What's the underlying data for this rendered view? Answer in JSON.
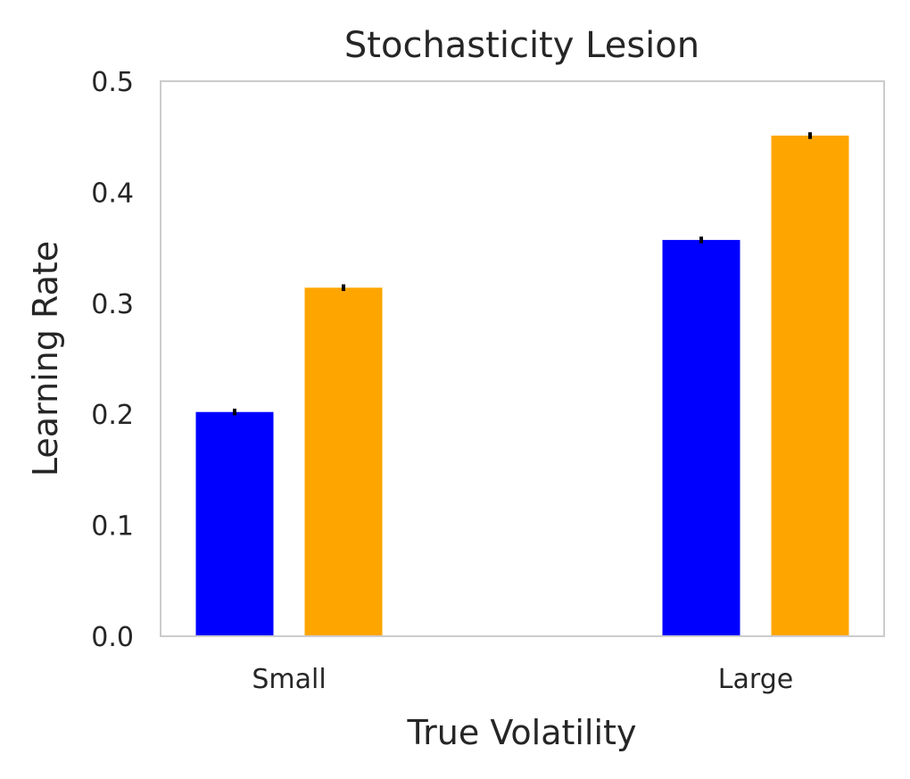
{
  "chart_data": {
    "type": "bar",
    "title": "Stochasticity Lesion",
    "xlabel": "True Volatility",
    "ylabel": "Learning Rate",
    "categories": [
      "Small",
      "Large"
    ],
    "ylim": [
      0,
      0.5
    ],
    "yticks": [
      "0.0",
      "0.1",
      "0.2",
      "0.3",
      "0.4",
      "0.5"
    ],
    "grid": false,
    "series": [
      {
        "color": "#0000ff",
        "values": [
          0.202,
          0.357
        ],
        "errors": [
          0.003,
          0.003
        ]
      },
      {
        "color": "#ffa500",
        "values": [
          0.314,
          0.451
        ],
        "errors": [
          0.003,
          0.003
        ]
      }
    ],
    "error_color": "#000000",
    "frame_color": "#cccccc"
  }
}
